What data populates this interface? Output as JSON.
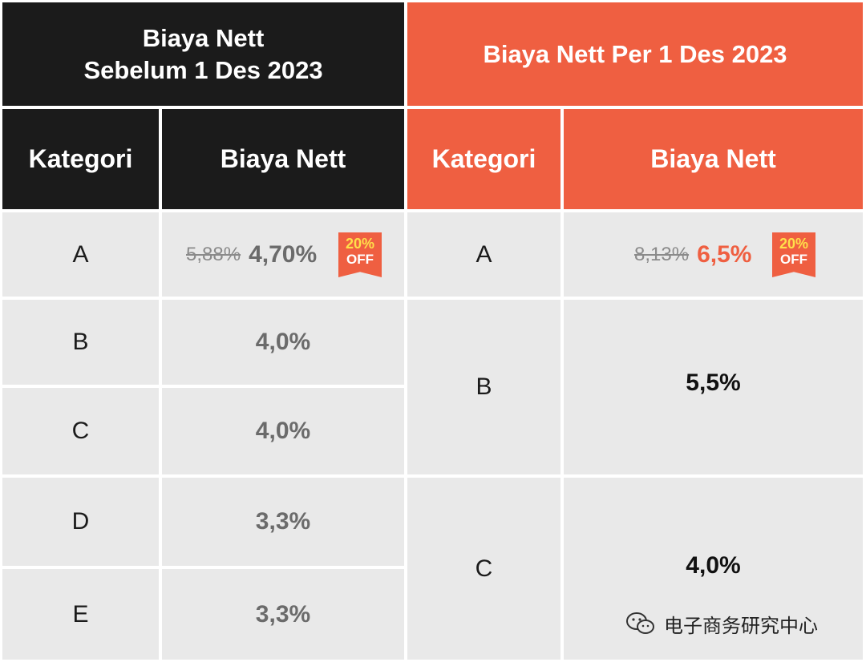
{
  "left_table": {
    "title_line1": "Biaya Nett",
    "title_line2": "Sebelum 1 Des 2023",
    "col_kategori": "Kategori",
    "col_biaya": "Biaya Nett",
    "rows": [
      {
        "kategori": "A",
        "old_value": "5,88%",
        "value": "4,70%",
        "badge_pct": "20%",
        "badge_off": "OFF"
      },
      {
        "kategori": "B",
        "value": "4,0%"
      },
      {
        "kategori": "C",
        "value": "4,0%"
      },
      {
        "kategori": "D",
        "value": "3,3%"
      },
      {
        "kategori": "E",
        "value": "3,3%"
      }
    ]
  },
  "right_table": {
    "title": "Biaya Nett Per 1 Des 2023",
    "col_kategori": "Kategori",
    "col_biaya": "Biaya Nett",
    "rows": [
      {
        "kategori": "A",
        "old_value": "8,13%",
        "value": "6,5%",
        "badge_pct": "20%",
        "badge_off": "OFF"
      },
      {
        "kategori": "B",
        "value": "5,5%"
      },
      {
        "kategori": "C",
        "value": "4,0%"
      }
    ]
  },
  "watermark": {
    "text": "电子商务研究中心",
    "icon": "wechat-icon"
  },
  "colors": {
    "dark": "#1b1b1b",
    "orange": "#ef5f41",
    "grey": "#e9e9e9"
  }
}
